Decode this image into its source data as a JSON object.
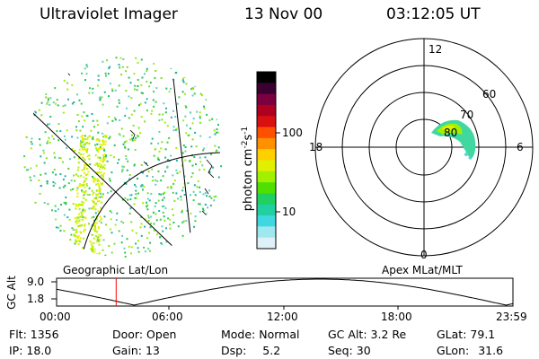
{
  "header": {
    "title": "Ultraviolet Imager",
    "date": "13 Nov 00",
    "time": "03:12:05 UT"
  },
  "colorbar": {
    "unit_label": "photon cm",
    "unit_sup1": "-2",
    "unit_mid": "s",
    "unit_sup2": "-1",
    "ticks": [
      {
        "label": "100"
      },
      {
        "label": "10"
      }
    ],
    "colors": [
      "#000000",
      "#3a0030",
      "#7a0040",
      "#b00020",
      "#d81010",
      "#ff5000",
      "#ff9000",
      "#ffd000",
      "#e0f000",
      "#a0f000",
      "#50e000",
      "#20d060",
      "#20d0a0",
      "#40d8e0",
      "#a0e8f0",
      "#e0f0f8"
    ]
  },
  "polar": {
    "labels": {
      "top": "12",
      "bottom": "0",
      "left": "18",
      "right": "6"
    },
    "ring_labels": [
      "60",
      "70",
      "80"
    ]
  },
  "panel_labels": {
    "left": "Geographic Lat/Lon",
    "right": "Apex MLat/MLT"
  },
  "altitude_plot": {
    "ylabel": "GC Alt",
    "y_ticks": [
      "9.0",
      "1.8"
    ],
    "x_ticks": [
      "00:00",
      "06:00",
      "12:00",
      "18:00",
      "23:59"
    ],
    "current_time_fraction": 0.1306
  },
  "info": {
    "flt_label": "Flt:",
    "flt_value": "1356",
    "door_label": "Door:",
    "door_value": "Open",
    "mode_label": "Mode:",
    "mode_value": "Normal",
    "gcalt_label": "GC Alt:",
    "gcalt_value": "3.2 Re",
    "glat_label": "GLat:",
    "glat_value": "79.1",
    "ip_label": "IP:",
    "ip_value": "18.0",
    "gain_label": "Gain:",
    "gain_value": "13",
    "dsp_label": "Dsp:",
    "dsp_value": "5.2",
    "seq_label": "Seq:",
    "seq_value": "30",
    "glon_label": "GLon:",
    "glon_value": "31.6"
  }
}
